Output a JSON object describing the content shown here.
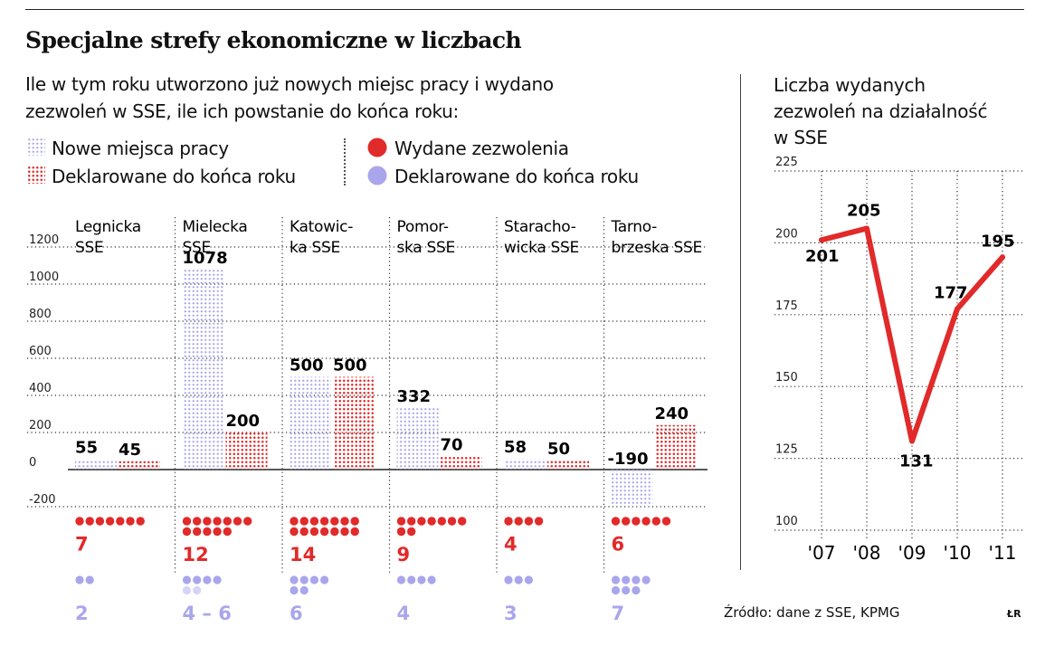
{
  "title": "Specjalne strefy ekonomiczne w liczbach",
  "subtitle_line1": "Ile w tym roku utworzono już nowych miejsc pracy i wydano",
  "subtitle_line2": "zezwoleń w SSE, ile ich powstanie do końca roku:",
  "legend": {
    "jobs_new": "Nowe miejsca pracy",
    "jobs_declared": "Deklarowane do końca roku",
    "permits_issued": "Wydane zezwolenia",
    "permits_declared": "Deklarowane do końca roku"
  },
  "right_title_line1": "Liczba wydanych",
  "right_title_line2": "zezwoleń na działalność",
  "right_title_line3": "w SSE",
  "source": "Źródło: dane z SSE, KPMG",
  "initials": "ŁR",
  "colors": {
    "red": "#e12a2a",
    "lilac": "#a9a6ec",
    "lilac_light": "#d6d4f6",
    "text": "#111111"
  },
  "chart_data": [
    {
      "type": "bar",
      "ylim": [
        -200,
        1200
      ],
      "yticks": [
        "1200",
        "1000",
        "800",
        "600",
        "400",
        "200",
        "0",
        "-200"
      ],
      "zones": [
        {
          "name_line1": "Legnicka",
          "name_line2": "SSE",
          "jobs_new": 55,
          "jobs_new_label": "55",
          "jobs_declared": 45,
          "jobs_declared_label": "45",
          "permits_issued": 7,
          "permits_issued_label": "7",
          "permits_declared": [
            2
          ],
          "permits_declared_label": "2"
        },
        {
          "name_line1": "Mielecka",
          "name_line2": "SSE",
          "jobs_new": 1078,
          "jobs_new_label": "1078",
          "jobs_declared": 200,
          "jobs_declared_label": "200",
          "permits_issued": 12,
          "permits_issued_label": "12",
          "permits_declared": [
            4,
            6
          ],
          "permits_declared_label": "4 – 6"
        },
        {
          "name_line1": "Katowic-",
          "name_line2": "ka SSE",
          "jobs_new": 500,
          "jobs_new_label": "500",
          "jobs_declared": 500,
          "jobs_declared_label": "500",
          "permits_issued": 14,
          "permits_issued_label": "14",
          "permits_declared": [
            6
          ],
          "permits_declared_label": "6"
        },
        {
          "name_line1": "Pomor-",
          "name_line2": "ska SSE",
          "jobs_new": 332,
          "jobs_new_label": "332",
          "jobs_declared": 70,
          "jobs_declared_label": "70",
          "permits_issued": 9,
          "permits_issued_label": "9",
          "permits_declared": [
            4
          ],
          "permits_declared_label": "4"
        },
        {
          "name_line1": "Staracho-",
          "name_line2": "wicka SSE",
          "jobs_new": 58,
          "jobs_new_label": "58",
          "jobs_declared": 50,
          "jobs_declared_label": "50",
          "permits_issued": 4,
          "permits_issued_label": "4",
          "permits_declared": [
            3
          ],
          "permits_declared_label": "3"
        },
        {
          "name_line1": "Tarno-",
          "name_line2": "brzeska SSE",
          "jobs_new": -190,
          "jobs_new_label": "-190",
          "jobs_declared": 240,
          "jobs_declared_label": "240",
          "permits_issued": 6,
          "permits_issued_label": "6",
          "permits_declared": [
            7
          ],
          "permits_declared_label": "7"
        }
      ]
    },
    {
      "type": "line",
      "x": [
        "'07",
        "'08",
        "'09",
        "'10",
        "'11"
      ],
      "values": [
        201,
        205,
        131,
        177,
        195
      ],
      "value_labels": [
        "201",
        "205",
        "131",
        "177",
        "195"
      ],
      "ylim": [
        100,
        225
      ],
      "yticks": [
        "225",
        "200",
        "175",
        "150",
        "125",
        "100"
      ],
      "grid": true
    }
  ]
}
